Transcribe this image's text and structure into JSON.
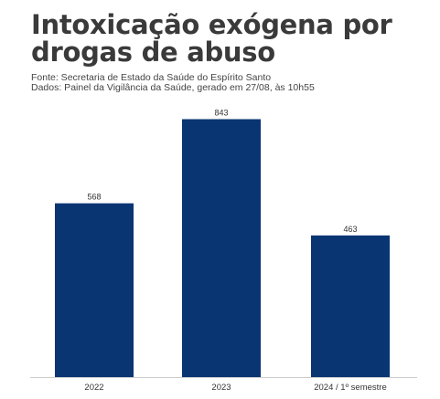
{
  "header": {
    "title_line1": "Intoxicação exógena por",
    "title_line2": "drogas de abuso",
    "source_line1": "Fonte: Secretaria de Estado da Saúde do Espírito Santo",
    "source_line2": "Dados: Painel da Vigilância da Saúde, gerado em 27/08, às 10h55"
  },
  "colors": {
    "bar": "#0a3573",
    "axis": "#cccccc",
    "title": "#3a3a3a"
  },
  "chart_data": {
    "type": "bar",
    "title": "Intoxicação exógena por drogas de abuso",
    "categories": [
      "2022",
      "2023",
      "2024 / 1º semestre"
    ],
    "values": [
      568,
      843,
      463
    ],
    "data_labels": [
      "568",
      "843",
      "463"
    ],
    "xlabel": "",
    "ylabel": "",
    "ylim": [
      0,
      900
    ],
    "grid": false,
    "legend": "none"
  }
}
